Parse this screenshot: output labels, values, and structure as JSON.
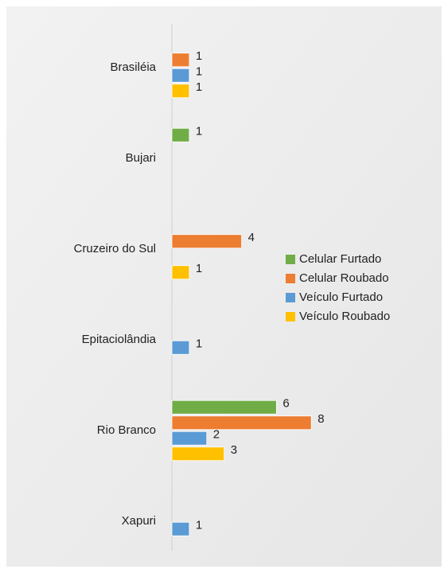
{
  "chart_data": {
    "type": "bar",
    "orientation": "horizontal",
    "categories": [
      "Brasiléia",
      "Bujari",
      "Cruzeiro do Sul",
      "Epitaciolândia",
      "Rio Branco",
      "Xapuri"
    ],
    "series": [
      {
        "name": "Celular Furtado",
        "color": "#70ad47",
        "values": [
          null,
          1,
          null,
          null,
          6,
          null
        ]
      },
      {
        "name": "Celular Roubado",
        "color": "#ed7d31",
        "values": [
          1,
          null,
          4,
          null,
          8,
          null
        ]
      },
      {
        "name": "Veículo Furtado",
        "color": "#5b9bd5",
        "values": [
          1,
          null,
          null,
          1,
          2,
          1
        ]
      },
      {
        "name": "Veículo Roubado",
        "color": "#ffc000",
        "values": [
          1,
          null,
          1,
          null,
          3,
          null
        ]
      }
    ],
    "xlim": [
      0,
      10
    ],
    "legend": "right"
  }
}
